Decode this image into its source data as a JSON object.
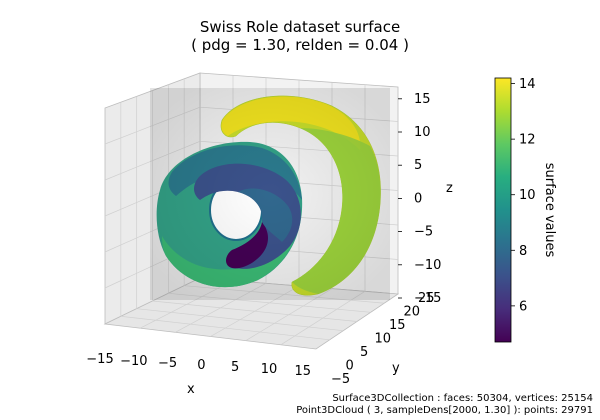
{
  "chart_data": {
    "type": "surface3d",
    "title_lines": [
      "Swiss Role dataset surface",
      "( pdg = 1.30, relden = 0.04 )"
    ],
    "xlabel": "x",
    "ylabel": "y",
    "zlabel": "z",
    "x_ticks": [
      -15,
      -10,
      -5,
      0,
      5,
      10,
      15
    ],
    "y_ticks": [
      -5,
      0,
      5,
      10,
      15,
      20,
      25
    ],
    "z_ticks": [
      -15,
      -10,
      -5,
      0,
      5,
      10,
      15
    ],
    "colorbar": {
      "label": "surface values",
      "colormap": "viridis",
      "ticks": [
        6,
        8,
        10,
        12,
        14
      ],
      "range": [
        4.7,
        14.2
      ]
    },
    "grid": true,
    "footer_lines": [
      "Surface3DCollection :  faces: 50304,  vertices: 25154",
      "Point3DCloud ( 3, sampleDens[2000, 1.30] ):  points: 29791"
    ]
  }
}
